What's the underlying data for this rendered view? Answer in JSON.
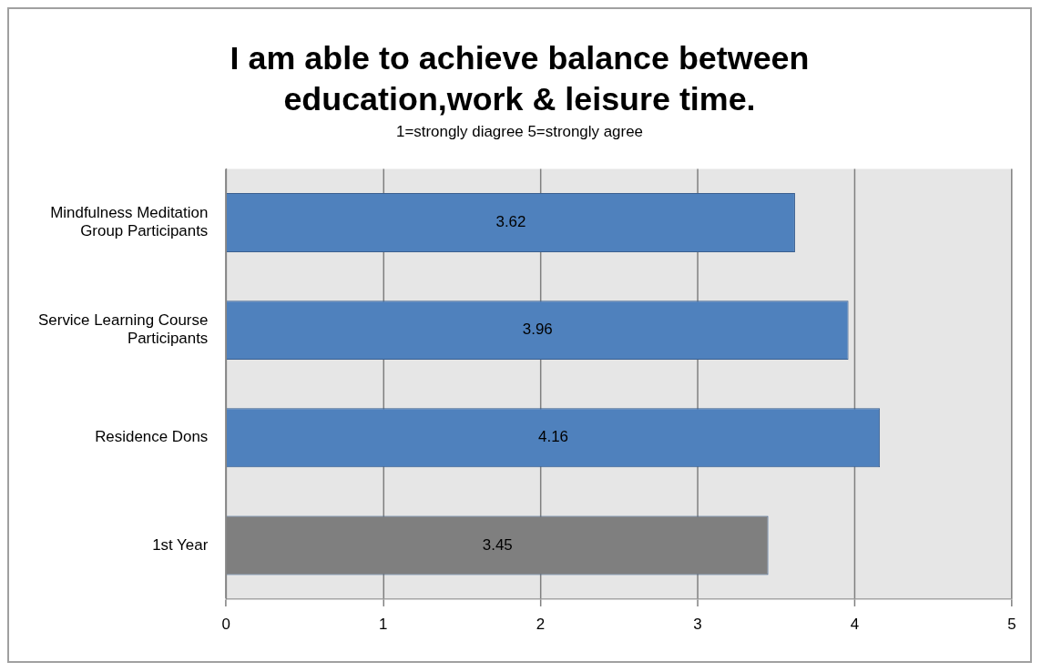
{
  "chart_data": {
    "type": "bar",
    "orientation": "horizontal",
    "title": "I am able to achieve balance between education,work & leisure time.",
    "subtitle": "1=strongly diagree 5=strongly agree",
    "categories": [
      "Mindfulness Meditation Group Participants",
      "Service Learning Course Participants",
      "Residence Dons",
      "1st Year"
    ],
    "values": [
      3.62,
      3.96,
      4.16,
      3.45
    ],
    "colors": [
      "#4f81bd",
      "#4f81bd",
      "#4f81bd",
      "#7f7f7f"
    ],
    "xlim": [
      0,
      5
    ],
    "xticks": [
      0,
      1,
      2,
      3,
      4,
      5
    ],
    "grid": "x",
    "data_labels": true,
    "legend": false
  }
}
